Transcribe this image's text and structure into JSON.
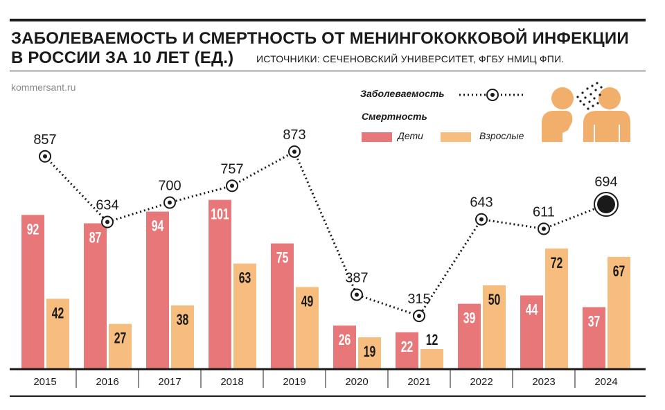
{
  "header": {
    "title_line1": "ЗАБОЛЕВАЕМОСТЬ И СМЕРТНОСТЬ ОТ МЕНИНГОКОККОВОЙ ИНФЕКЦИИ",
    "title_line2": "В РОССИИ ЗА 10 ЛЕТ (ЕД.)",
    "sources": "ИСТОЧНИКИ: СЕЧЕНОВСКИЙ УНИВЕРСИТЕТ, ФГБУ НМИЦ ФПИ.",
    "site": "kommersant.ru"
  },
  "legend": {
    "incidence_label": "Заболеваемость",
    "mortality_label": "Смертность",
    "children_label": "Дети",
    "adults_label": "Взрослые",
    "icon": "people-cough-icon"
  },
  "colors": {
    "children": "#e8777a",
    "adults": "#f7bd7f",
    "text": "#1a1a1a",
    "icon": "#f2ae6b"
  },
  "chart_data": {
    "type": "bar",
    "categories": [
      "2015",
      "2016",
      "2017",
      "2018",
      "2019",
      "2020",
      "2021",
      "2022",
      "2023",
      "2024"
    ],
    "series": [
      {
        "name": "Дети",
        "values": [
          92,
          87,
          94,
          101,
          75,
          26,
          22,
          39,
          44,
          37
        ]
      },
      {
        "name": "Взрослые",
        "values": [
          42,
          27,
          38,
          63,
          49,
          19,
          12,
          50,
          72,
          67
        ]
      }
    ],
    "line_series": {
      "name": "Заболеваемость",
      "values": [
        857,
        634,
        700,
        757,
        873,
        387,
        315,
        643,
        611,
        694
      ]
    },
    "legend_position": "top-right",
    "grid": false
  }
}
